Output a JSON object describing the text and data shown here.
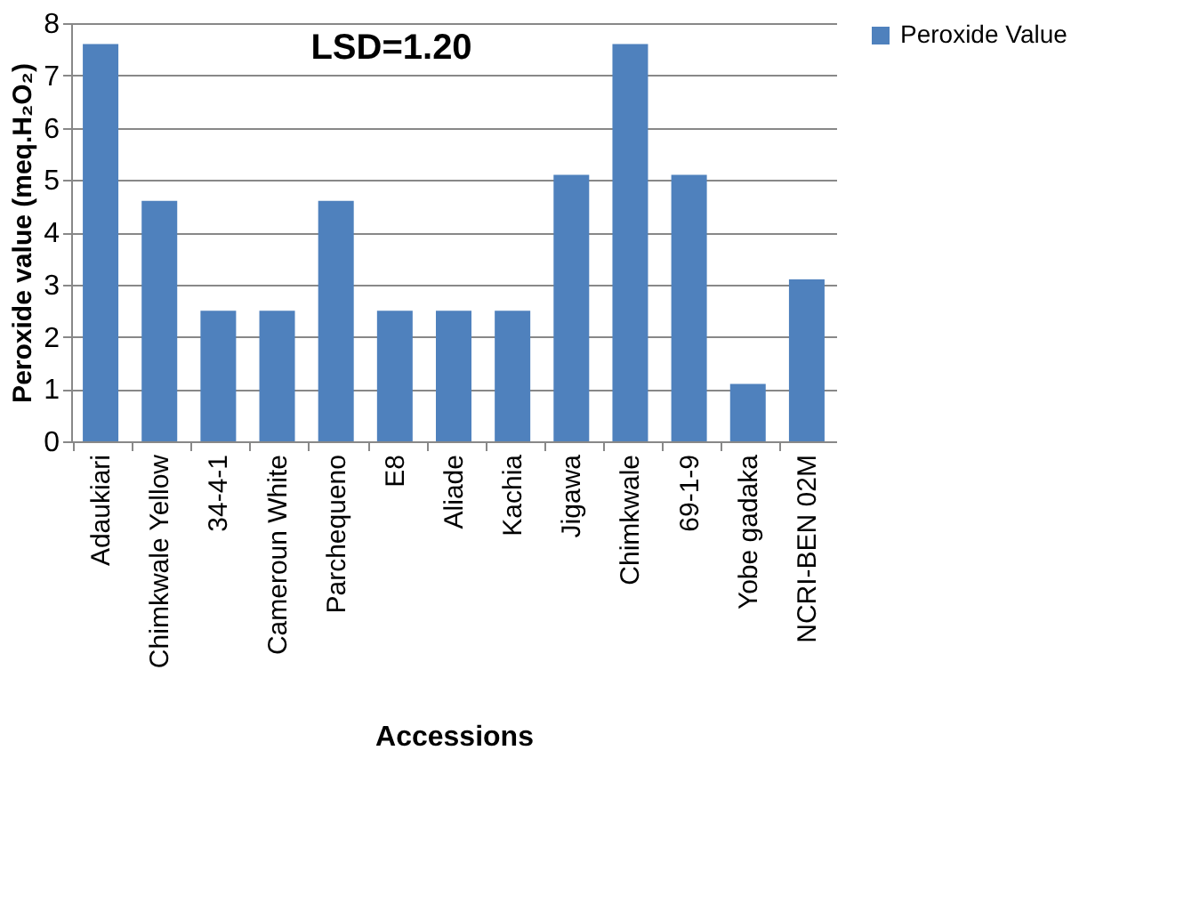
{
  "chart_data": {
    "type": "bar",
    "xlabel": "Accessions",
    "ylabel": "Peroxide value (meq.H₂O₂)",
    "categories": [
      "Adaukiari",
      "Chimkwale Yellow",
      "34-4-1",
      "Cameroun White",
      "Parchequeno",
      "E8",
      "Aliade",
      "Kachia",
      "Jigawa",
      "Chimkwale",
      "69-1-9",
      "Yobe gadaka",
      "NCRI-BEN 02M"
    ],
    "series": [
      {
        "name": "Peroxide Value",
        "color": "#4f81bd",
        "values": [
          7.6,
          4.6,
          2.5,
          2.5,
          4.6,
          2.5,
          2.5,
          2.5,
          5.1,
          7.6,
          5.1,
          1.1,
          3.1
        ]
      }
    ],
    "ylim": [
      0,
      8
    ],
    "yticks": [
      0,
      1,
      2,
      3,
      4,
      5,
      6,
      7,
      8
    ],
    "grid": "y",
    "legend": "right",
    "annotations": [
      "LSD=1.20"
    ]
  }
}
